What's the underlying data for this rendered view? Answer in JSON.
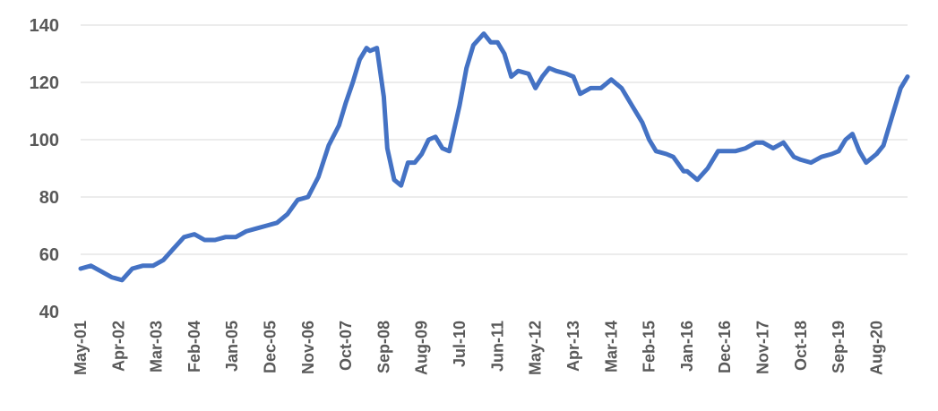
{
  "chart_data": {
    "type": "line",
    "title": "",
    "xlabel": "",
    "ylabel": "",
    "ylim": [
      40,
      140
    ],
    "y_ticks": [
      40,
      60,
      80,
      100,
      120,
      140
    ],
    "x_tick_labels": [
      "May-01",
      "Apr-02",
      "Mar-03",
      "Feb-04",
      "Jan-05",
      "Dec-05",
      "Nov-06",
      "Oct-07",
      "Sep-08",
      "Aug-09",
      "Jul-10",
      "Jun-11",
      "May-12",
      "Apr-13",
      "Mar-14",
      "Feb-15",
      "Jan-16",
      "Dec-16",
      "Nov-17",
      "Oct-18",
      "Sep-19",
      "Aug-20"
    ],
    "grid": "horizontal",
    "legend": "none",
    "line_color": "#4472c4",
    "series": [
      {
        "x": [
          "2001-05",
          "2001-08",
          "2001-11",
          "2002-02",
          "2002-05",
          "2002-08",
          "2002-11",
          "2003-02",
          "2003-05",
          "2003-08",
          "2003-11",
          "2004-02",
          "2004-05",
          "2004-08",
          "2004-11",
          "2005-02",
          "2005-05",
          "2005-08",
          "2005-11",
          "2006-02",
          "2006-05",
          "2006-08",
          "2006-11",
          "2007-02",
          "2007-05",
          "2007-08",
          "2007-10",
          "2007-12",
          "2008-02",
          "2008-04",
          "2008-05",
          "2008-07",
          "2008-09",
          "2008-10",
          "2008-12",
          "2009-02",
          "2009-04",
          "2009-06",
          "2009-08",
          "2009-10",
          "2009-12",
          "2010-02",
          "2010-04",
          "2010-07",
          "2010-09",
          "2010-11",
          "2011-02",
          "2011-04",
          "2011-06",
          "2011-08",
          "2011-10",
          "2011-12",
          "2012-03",
          "2012-05",
          "2012-07",
          "2012-09",
          "2012-11",
          "2013-02",
          "2013-04",
          "2013-06",
          "2013-09",
          "2013-12",
          "2014-03",
          "2014-06",
          "2014-09",
          "2014-12",
          "2015-02",
          "2015-04",
          "2015-07",
          "2015-09",
          "2015-12",
          "2016-01",
          "2016-04",
          "2016-07",
          "2016-10",
          "2016-12",
          "2017-03",
          "2017-06",
          "2017-09",
          "2017-11",
          "2018-02",
          "2018-05",
          "2018-08",
          "2018-10",
          "2019-01",
          "2019-04",
          "2019-07",
          "2019-09",
          "2019-11",
          "2020-01",
          "2020-03",
          "2020-05",
          "2020-08",
          "2020-10",
          "2021-01",
          "2021-03",
          "2021-05"
        ],
        "y": [
          55,
          56,
          54,
          52,
          51,
          55,
          56,
          56,
          58,
          62,
          66,
          67,
          65,
          65,
          66,
          66,
          68,
          69,
          70,
          71,
          74,
          79,
          80,
          87,
          98,
          105,
          113,
          120,
          128,
          132,
          131,
          132,
          115,
          97,
          86,
          84,
          92,
          92,
          95,
          100,
          101,
          97,
          96,
          112,
          125,
          133,
          137,
          134,
          134,
          130,
          122,
          124,
          123,
          118,
          122,
          125,
          124,
          123,
          122,
          116,
          118,
          118,
          121,
          118,
          112,
          106,
          100,
          96,
          95,
          94,
          89,
          89,
          86,
          90,
          96,
          96,
          96,
          97,
          99,
          99,
          97,
          99,
          94,
          93,
          92,
          94,
          95,
          96,
          100,
          102,
          96,
          92,
          95,
          98,
          110,
          118,
          122
        ]
      }
    ]
  }
}
